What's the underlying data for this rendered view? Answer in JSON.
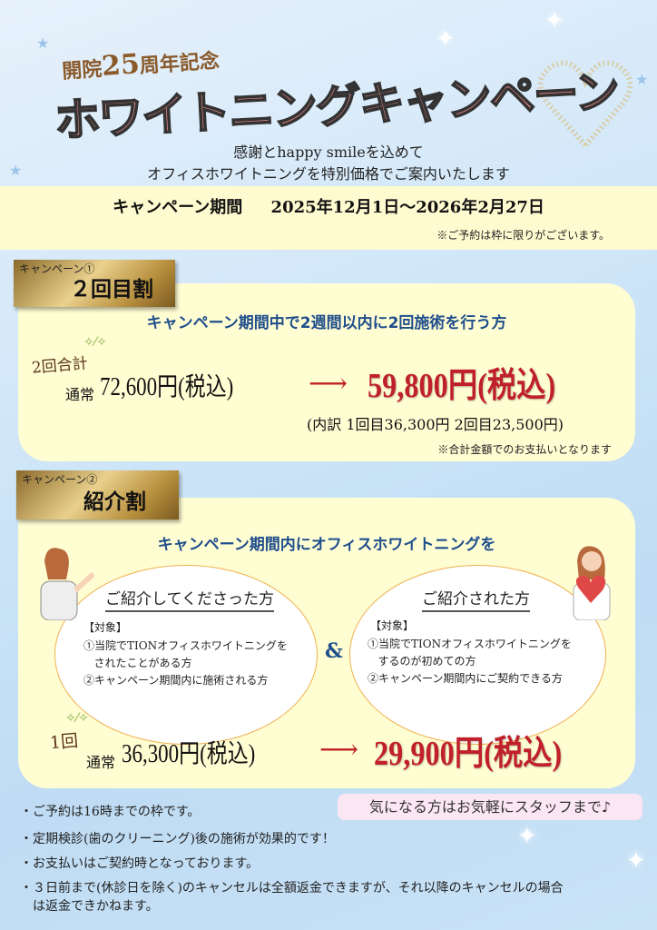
{
  "header": {
    "anniversary_prefix": "開院",
    "anniversary_number": "25",
    "anniversary_suffix": "周年記念",
    "title": "ホワイトニングキャンペーン",
    "subtitle_line1": "感謝とhappy smileを込めて",
    "subtitle_line2": "オフィスホワイトニングを特別価格でご案内いたします"
  },
  "period": {
    "label": "キャンペーン期間",
    "dates": "2025年12月1日～2026年2月27日",
    "note": "※ご予約は枠に限りがございます。"
  },
  "campaign1": {
    "tag_small": "キャンペーン①",
    "tag_title": "２回目割",
    "heading": "キャンペーン期間中で2週間以内に2回施術を行う方",
    "count_label": "2回合計",
    "regular_label": "通常",
    "regular_price": "72,600円(税込)",
    "arrow": "⟶",
    "sale_price": "59,800円(税込)",
    "breakdown": "(内訳  1回目36,300円 2回目23,500円)",
    "note": "※合計金額でのお支払いとなります"
  },
  "campaign2": {
    "tag_small": "キャンペーン②",
    "tag_title": "紹介割",
    "heading": "キャンペーン期間内にオフィスホワイトニングを",
    "referrer": {
      "title": "ご紹介してくださった方",
      "target_label": "【対象】",
      "item1": "①当院でTIONオフィスホワイトニングを\n   されたことがある方",
      "item2": "②キャンペーン期間内に施術される方"
    },
    "ampersand": "&",
    "referred": {
      "title": "ご紹介された方",
      "target_label": "【対象】",
      "item1": "①当院でTIONオフィスホワイトニングを\n   するのが初めての方",
      "item2": "②キャンペーン期間内にご契約できる方"
    },
    "count_label": "1回",
    "regular_label": "通常",
    "regular_price": "36,300円(税込)",
    "arrow": "⟶",
    "sale_price": "29,900円(税込)"
  },
  "contact_bubble": "気になる方はお気軽にスタッフまで♪",
  "notes": [
    "・ご予約は16時までの枠です。",
    "・定期検診(歯のクリーニング)後の施術が効果的です！",
    "・お支払いはご契約時となっております。",
    "・３日前まで(休診日を除く)のキャンセルは全額返金できますが、それ以降のキャンセルの場合\n　は返金できかねます。"
  ],
  "colors": {
    "title_pink": "#f48a8a",
    "price_red": "#c0202a",
    "heading_blue": "#1f4e8c",
    "card_yellow": "#fffdd2",
    "band_yellow": "#fffbd0",
    "bubble_pink": "#fbe6f3"
  }
}
